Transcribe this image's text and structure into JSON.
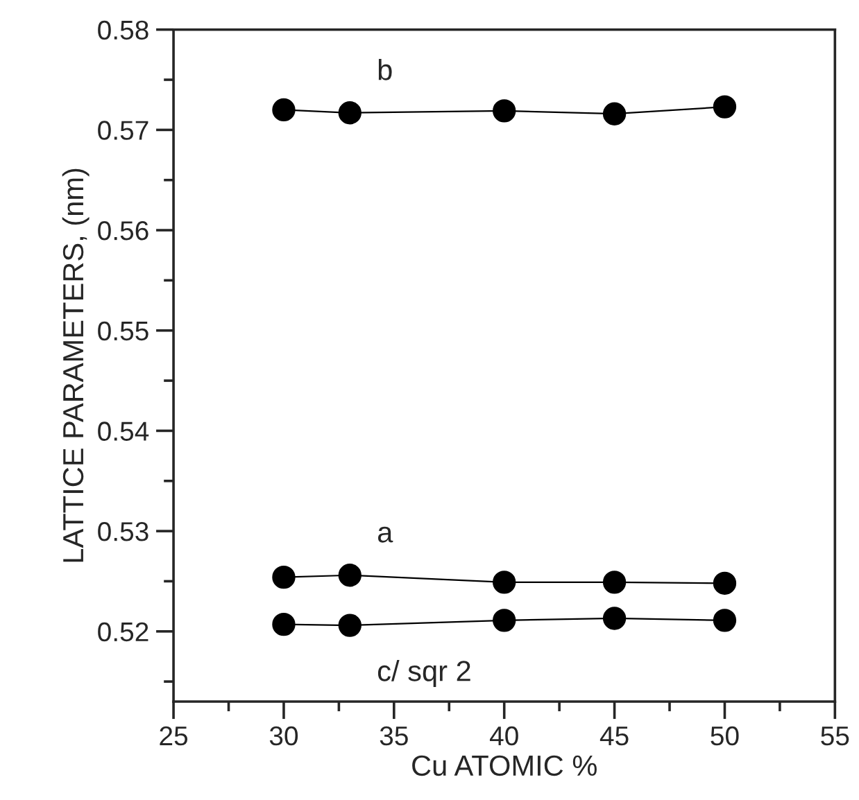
{
  "chart_data": {
    "type": "line",
    "xlabel": "Cu ATOMIC %",
    "ylabel": "LATTICE PARAMETERS, (nm)",
    "x": [
      30,
      33,
      40,
      45,
      50
    ],
    "series": [
      {
        "name": "b",
        "color": "#000000",
        "values": [
          0.572,
          0.5717,
          0.5719,
          0.5716,
          0.5723
        ]
      },
      {
        "name": "a",
        "color": "#000000",
        "values": [
          0.5254,
          0.5256,
          0.5249,
          0.5249,
          0.5248
        ]
      },
      {
        "name": "c/ sqr 2",
        "color": "#000000",
        "values": [
          0.5207,
          0.5206,
          0.5211,
          0.5213,
          0.5211
        ]
      }
    ],
    "xlim": [
      25,
      55
    ],
    "xticks": [
      25,
      30,
      35,
      40,
      45,
      50,
      55
    ],
    "ylim": [
      0.513,
      0.58
    ],
    "yticks": [
      0.52,
      0.53,
      0.54,
      0.55,
      0.56,
      0.57,
      0.58
    ],
    "marker": "circle",
    "line_style": "solid",
    "grid": false,
    "legend": false
  }
}
